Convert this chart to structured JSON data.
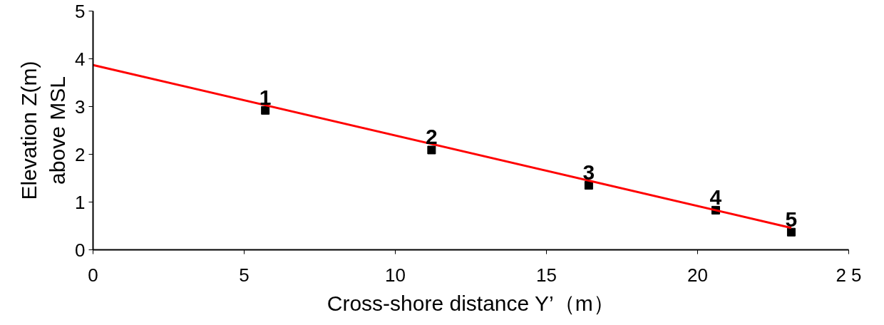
{
  "chart_data": {
    "type": "scatter",
    "xlabel": "Cross-shore distance Y’（m）",
    "ylabel": "Elevation Z(m)\nabove MSL",
    "xlim": [
      0,
      25
    ],
    "ylim": [
      0,
      5
    ],
    "xticks": [
      0,
      5,
      10,
      15,
      20,
      {
        "value": 25,
        "label": "2 5"
      }
    ],
    "yticks": [
      0,
      1,
      2,
      3,
      4,
      5
    ],
    "grid": false,
    "series": [
      {
        "marker": "square",
        "color": "#000000",
        "x": [
          5.7,
          11.2,
          16.4,
          20.6,
          23.1
        ],
        "values": [
          2.92,
          2.09,
          1.35,
          0.83,
          0.37
        ]
      },
      {
        "type": "line",
        "marker": "none",
        "line_style": "solid",
        "color": "#ff0000",
        "x": [
          0,
          23.1
        ],
        "values": [
          3.87,
          0.46
        ]
      }
    ],
    "annotations": [
      {
        "text": "1",
        "x": 5.7,
        "y": 2.92
      },
      {
        "text": "2",
        "x": 11.2,
        "y": 2.09
      },
      {
        "text": "3",
        "x": 16.4,
        "y": 1.35
      },
      {
        "text": "4",
        "x": 20.6,
        "y": 0.83
      },
      {
        "text": "5",
        "x": 23.1,
        "y": 0.37
      }
    ]
  }
}
